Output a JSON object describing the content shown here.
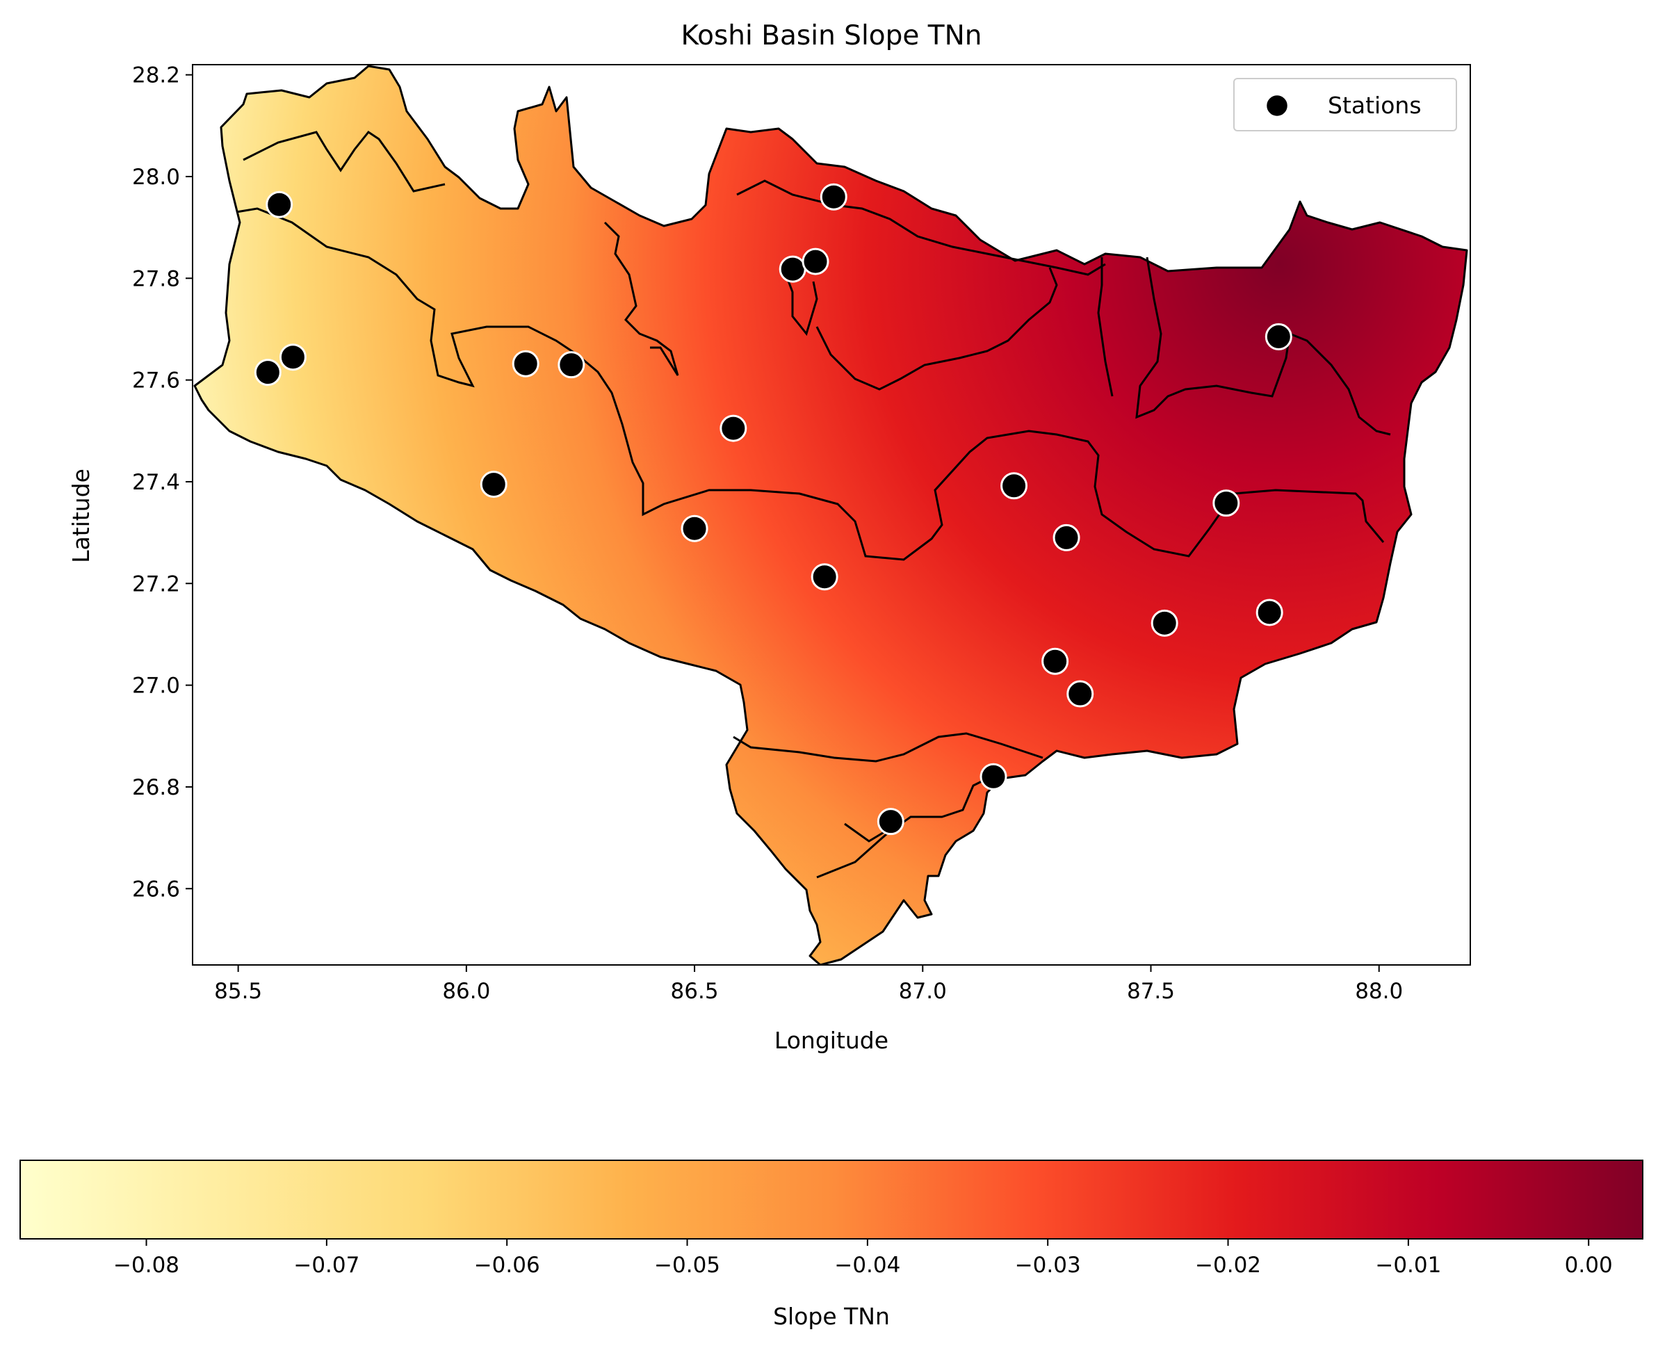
{
  "title": "Koshi Basin Slope TNn",
  "xlabel": "Longitude",
  "ylabel": "Latitude",
  "legend": {
    "label": "Stations",
    "placement": "upper-right"
  },
  "colorbar": {
    "label": "Slope TNn",
    "range": [
      -0.087,
      0.003
    ],
    "colormap": "YlOrRd",
    "ticks": [
      {
        "value": -0.08,
        "label": "−0.08"
      },
      {
        "value": -0.07,
        "label": "−0.07"
      },
      {
        "value": -0.06,
        "label": "−0.06"
      },
      {
        "value": -0.05,
        "label": "−0.05"
      },
      {
        "value": -0.04,
        "label": "−0.04"
      },
      {
        "value": -0.03,
        "label": "−0.03"
      },
      {
        "value": -0.02,
        "label": "−0.02"
      },
      {
        "value": -0.01,
        "label": "−0.01"
      },
      {
        "value": 0.0,
        "label": "0.00"
      }
    ]
  },
  "chart_data": {
    "type": "map",
    "xlim": [
      85.4,
      88.2
    ],
    "ylim": [
      26.45,
      28.22
    ],
    "x_ticks": [
      {
        "value": 85.5,
        "label": "85.5"
      },
      {
        "value": 86.0,
        "label": "86.0"
      },
      {
        "value": 86.5,
        "label": "86.5"
      },
      {
        "value": 87.0,
        "label": "87.0"
      },
      {
        "value": 87.5,
        "label": "87.5"
      },
      {
        "value": 88.0,
        "label": "88.0"
      }
    ],
    "y_ticks": [
      {
        "value": 26.6,
        "label": "26.6"
      },
      {
        "value": 26.8,
        "label": "26.8"
      },
      {
        "value": 27.0,
        "label": "27.0"
      },
      {
        "value": 27.2,
        "label": "27.2"
      },
      {
        "value": 27.4,
        "label": "27.4"
      },
      {
        "value": 27.6,
        "label": "27.6"
      },
      {
        "value": 27.8,
        "label": "27.8"
      },
      {
        "value": 28.0,
        "label": "28.0"
      },
      {
        "value": 28.2,
        "label": "28.2"
      }
    ],
    "stations": [
      {
        "lon": 85.59,
        "lat": 27.945
      },
      {
        "lon": 85.565,
        "lat": 27.615
      },
      {
        "lon": 85.62,
        "lat": 27.645
      },
      {
        "lon": 86.13,
        "lat": 27.632
      },
      {
        "lon": 86.23,
        "lat": 27.63
      },
      {
        "lon": 86.06,
        "lat": 27.395
      },
      {
        "lon": 86.585,
        "lat": 27.505
      },
      {
        "lon": 86.5,
        "lat": 27.308
      },
      {
        "lon": 86.805,
        "lat": 27.96
      },
      {
        "lon": 86.715,
        "lat": 27.818
      },
      {
        "lon": 86.765,
        "lat": 27.833
      },
      {
        "lon": 86.785,
        "lat": 27.213
      },
      {
        "lon": 87.2,
        "lat": 27.392
      },
      {
        "lon": 87.315,
        "lat": 27.29
      },
      {
        "lon": 87.665,
        "lat": 27.358
      },
      {
        "lon": 87.53,
        "lat": 27.122
      },
      {
        "lon": 87.76,
        "lat": 27.143
      },
      {
        "lon": 87.29,
        "lat": 27.047
      },
      {
        "lon": 87.345,
        "lat": 26.983
      },
      {
        "lon": 87.78,
        "lat": 27.685
      },
      {
        "lon": 87.155,
        "lat": 26.82
      },
      {
        "lon": 86.93,
        "lat": 26.732
      }
    ]
  }
}
